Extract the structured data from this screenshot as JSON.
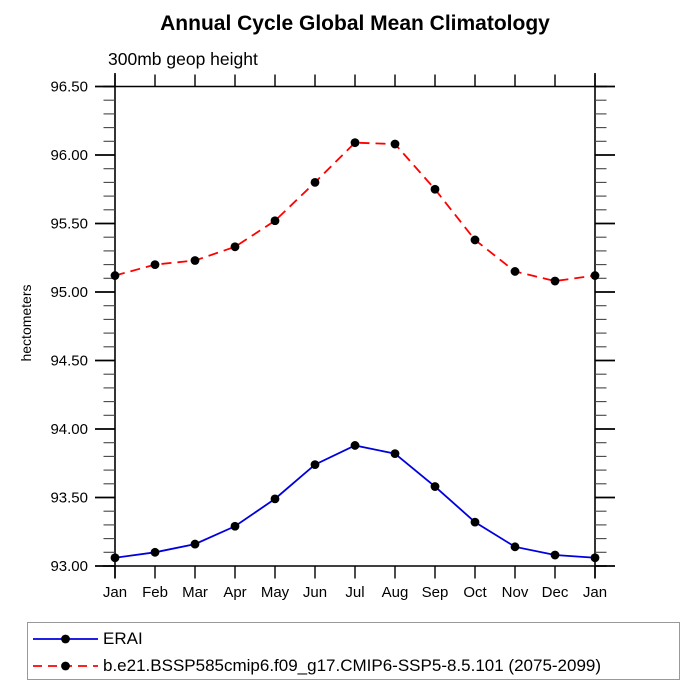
{
  "title": "Annual Cycle Global Mean Climatology",
  "subtitle": "300mb geop height",
  "y_axis_label": "hectometers",
  "chart_data": {
    "type": "line",
    "categories": [
      "Jan",
      "Feb",
      "Mar",
      "Apr",
      "May",
      "Jun",
      "Jul",
      "Aug",
      "Sep",
      "Oct",
      "Nov",
      "Dec",
      "Jan"
    ],
    "series": [
      {
        "name": "ERAI",
        "line_color": "#0000dd",
        "line_style": "solid",
        "marker": "filled-circle",
        "marker_color": "#000000",
        "values": [
          93.06,
          93.1,
          93.16,
          93.29,
          93.49,
          93.74,
          93.88,
          93.82,
          93.58,
          93.32,
          93.14,
          93.08,
          93.06
        ]
      },
      {
        "name": "b.e21.BSSP585cmip6.f09_g17.CMIP6-SSP5-8.5.101 (2075-2099)",
        "line_color": "#ff0000",
        "line_style": "dashed",
        "marker": "filled-circle",
        "marker_color": "#000000",
        "values": [
          95.12,
          95.2,
          95.23,
          95.33,
          95.52,
          95.8,
          96.09,
          96.08,
          95.75,
          95.38,
          95.15,
          95.08,
          95.12
        ]
      }
    ],
    "ylim": [
      93.0,
      96.5
    ],
    "y_major_step": 0.5,
    "y_minor_step": 0.1,
    "y_tick_labels": [
      "93.00",
      "93.50",
      "94.00",
      "94.50",
      "95.00",
      "95.50",
      "96.00",
      "96.50"
    ],
    "grid": false,
    "legend_position": "bottom",
    "axis_color": "#000000",
    "text_color": "#000000"
  }
}
